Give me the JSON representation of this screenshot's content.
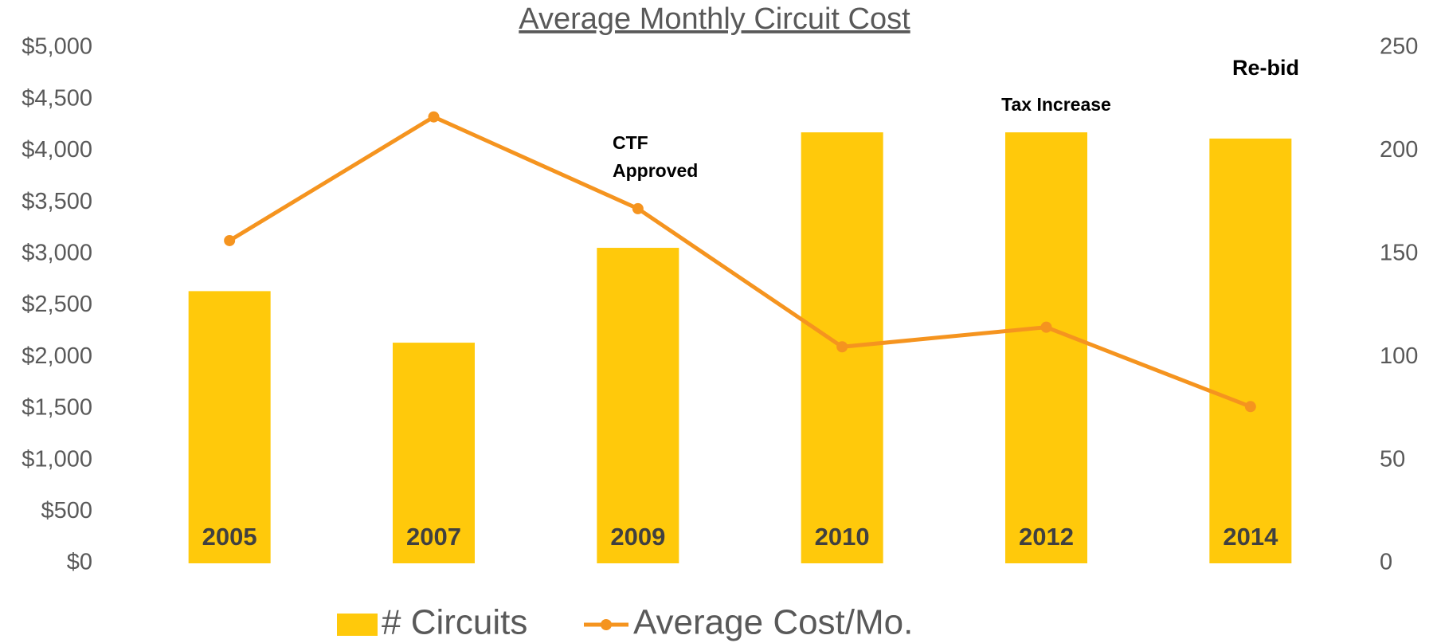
{
  "chart_data": {
    "type": "bar_line",
    "title": "Average Monthly Circuit Cost",
    "categories": [
      "2005",
      "2007",
      "2009",
      "2010",
      "2012",
      "2014"
    ],
    "series": [
      {
        "name": "# Circuits",
        "type": "bar",
        "axis": "y2",
        "color": "#ffc90b",
        "values": [
          132,
          107,
          153,
          209,
          209,
          206
        ]
      },
      {
        "name": "Average Cost/Mo.",
        "type": "line",
        "axis": "y",
        "color": "#f5941f",
        "values": [
          3130,
          4330,
          3440,
          2100,
          2290,
          1520
        ]
      }
    ],
    "ylim": [
      0,
      5000
    ],
    "yticks": [
      {
        "value": 0,
        "label": "$0"
      },
      {
        "value": 500,
        "label": "$500"
      },
      {
        "value": 1000,
        "label": "$1,000"
      },
      {
        "value": 1500,
        "label": "$1,500"
      },
      {
        "value": 2000,
        "label": "$2,000"
      },
      {
        "value": 2500,
        "label": "$2,500"
      },
      {
        "value": 3000,
        "label": "$3,000"
      },
      {
        "value": 3500,
        "label": "$3,500"
      },
      {
        "value": 4000,
        "label": "$4,000"
      },
      {
        "value": 4500,
        "label": "$4,500"
      },
      {
        "value": 5000,
        "label": "$5,000"
      }
    ],
    "y2lim": [
      0,
      250
    ],
    "y2ticks": [
      0,
      50,
      100,
      150,
      200,
      250
    ],
    "annotations": [
      "CTF Approved",
      "Tax Increase",
      "Re-bid"
    ],
    "legend": "bottom"
  }
}
